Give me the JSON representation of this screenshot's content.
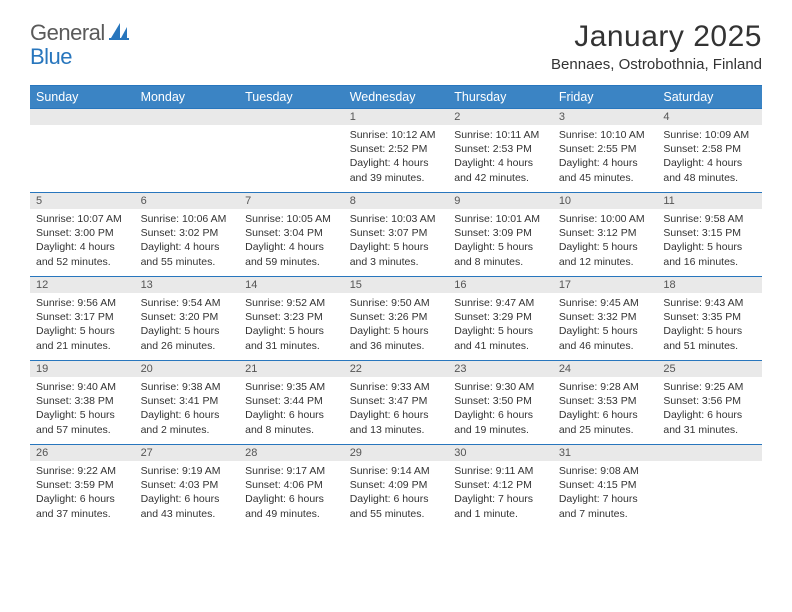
{
  "logo": {
    "word1": "General",
    "word2": "Blue"
  },
  "title": "January 2025",
  "location": "Bennaes, Ostrobothnia, Finland",
  "colors": {
    "header_bg": "#3b84c4",
    "header_border": "#2876bd",
    "daynum_bg": "#e9e9e9",
    "text": "#333333",
    "logo_gray": "#5a5a5a",
    "logo_blue": "#2876bd",
    "page_bg": "#ffffff"
  },
  "typography": {
    "title_size": 30,
    "location_size": 15,
    "dayhead_size": 12.5,
    "daynum_size": 11,
    "body_size": 10.5
  },
  "dayHeaders": [
    "Sunday",
    "Monday",
    "Tuesday",
    "Wednesday",
    "Thursday",
    "Friday",
    "Saturday"
  ],
  "weeks": [
    [
      {
        "empty": true
      },
      {
        "empty": true
      },
      {
        "empty": true
      },
      {
        "num": "1",
        "sunrise": "Sunrise: 10:12 AM",
        "sunset": "Sunset: 2:52 PM",
        "daylight1": "Daylight: 4 hours",
        "daylight2": "and 39 minutes."
      },
      {
        "num": "2",
        "sunrise": "Sunrise: 10:11 AM",
        "sunset": "Sunset: 2:53 PM",
        "daylight1": "Daylight: 4 hours",
        "daylight2": "and 42 minutes."
      },
      {
        "num": "3",
        "sunrise": "Sunrise: 10:10 AM",
        "sunset": "Sunset: 2:55 PM",
        "daylight1": "Daylight: 4 hours",
        "daylight2": "and 45 minutes."
      },
      {
        "num": "4",
        "sunrise": "Sunrise: 10:09 AM",
        "sunset": "Sunset: 2:58 PM",
        "daylight1": "Daylight: 4 hours",
        "daylight2": "and 48 minutes."
      }
    ],
    [
      {
        "num": "5",
        "sunrise": "Sunrise: 10:07 AM",
        "sunset": "Sunset: 3:00 PM",
        "daylight1": "Daylight: 4 hours",
        "daylight2": "and 52 minutes."
      },
      {
        "num": "6",
        "sunrise": "Sunrise: 10:06 AM",
        "sunset": "Sunset: 3:02 PM",
        "daylight1": "Daylight: 4 hours",
        "daylight2": "and 55 minutes."
      },
      {
        "num": "7",
        "sunrise": "Sunrise: 10:05 AM",
        "sunset": "Sunset: 3:04 PM",
        "daylight1": "Daylight: 4 hours",
        "daylight2": "and 59 minutes."
      },
      {
        "num": "8",
        "sunrise": "Sunrise: 10:03 AM",
        "sunset": "Sunset: 3:07 PM",
        "daylight1": "Daylight: 5 hours",
        "daylight2": "and 3 minutes."
      },
      {
        "num": "9",
        "sunrise": "Sunrise: 10:01 AM",
        "sunset": "Sunset: 3:09 PM",
        "daylight1": "Daylight: 5 hours",
        "daylight2": "and 8 minutes."
      },
      {
        "num": "10",
        "sunrise": "Sunrise: 10:00 AM",
        "sunset": "Sunset: 3:12 PM",
        "daylight1": "Daylight: 5 hours",
        "daylight2": "and 12 minutes."
      },
      {
        "num": "11",
        "sunrise": "Sunrise: 9:58 AM",
        "sunset": "Sunset: 3:15 PM",
        "daylight1": "Daylight: 5 hours",
        "daylight2": "and 16 minutes."
      }
    ],
    [
      {
        "num": "12",
        "sunrise": "Sunrise: 9:56 AM",
        "sunset": "Sunset: 3:17 PM",
        "daylight1": "Daylight: 5 hours",
        "daylight2": "and 21 minutes."
      },
      {
        "num": "13",
        "sunrise": "Sunrise: 9:54 AM",
        "sunset": "Sunset: 3:20 PM",
        "daylight1": "Daylight: 5 hours",
        "daylight2": "and 26 minutes."
      },
      {
        "num": "14",
        "sunrise": "Sunrise: 9:52 AM",
        "sunset": "Sunset: 3:23 PM",
        "daylight1": "Daylight: 5 hours",
        "daylight2": "and 31 minutes."
      },
      {
        "num": "15",
        "sunrise": "Sunrise: 9:50 AM",
        "sunset": "Sunset: 3:26 PM",
        "daylight1": "Daylight: 5 hours",
        "daylight2": "and 36 minutes."
      },
      {
        "num": "16",
        "sunrise": "Sunrise: 9:47 AM",
        "sunset": "Sunset: 3:29 PM",
        "daylight1": "Daylight: 5 hours",
        "daylight2": "and 41 minutes."
      },
      {
        "num": "17",
        "sunrise": "Sunrise: 9:45 AM",
        "sunset": "Sunset: 3:32 PM",
        "daylight1": "Daylight: 5 hours",
        "daylight2": "and 46 minutes."
      },
      {
        "num": "18",
        "sunrise": "Sunrise: 9:43 AM",
        "sunset": "Sunset: 3:35 PM",
        "daylight1": "Daylight: 5 hours",
        "daylight2": "and 51 minutes."
      }
    ],
    [
      {
        "num": "19",
        "sunrise": "Sunrise: 9:40 AM",
        "sunset": "Sunset: 3:38 PM",
        "daylight1": "Daylight: 5 hours",
        "daylight2": "and 57 minutes."
      },
      {
        "num": "20",
        "sunrise": "Sunrise: 9:38 AM",
        "sunset": "Sunset: 3:41 PM",
        "daylight1": "Daylight: 6 hours",
        "daylight2": "and 2 minutes."
      },
      {
        "num": "21",
        "sunrise": "Sunrise: 9:35 AM",
        "sunset": "Sunset: 3:44 PM",
        "daylight1": "Daylight: 6 hours",
        "daylight2": "and 8 minutes."
      },
      {
        "num": "22",
        "sunrise": "Sunrise: 9:33 AM",
        "sunset": "Sunset: 3:47 PM",
        "daylight1": "Daylight: 6 hours",
        "daylight2": "and 13 minutes."
      },
      {
        "num": "23",
        "sunrise": "Sunrise: 9:30 AM",
        "sunset": "Sunset: 3:50 PM",
        "daylight1": "Daylight: 6 hours",
        "daylight2": "and 19 minutes."
      },
      {
        "num": "24",
        "sunrise": "Sunrise: 9:28 AM",
        "sunset": "Sunset: 3:53 PM",
        "daylight1": "Daylight: 6 hours",
        "daylight2": "and 25 minutes."
      },
      {
        "num": "25",
        "sunrise": "Sunrise: 9:25 AM",
        "sunset": "Sunset: 3:56 PM",
        "daylight1": "Daylight: 6 hours",
        "daylight2": "and 31 minutes."
      }
    ],
    [
      {
        "num": "26",
        "sunrise": "Sunrise: 9:22 AM",
        "sunset": "Sunset: 3:59 PM",
        "daylight1": "Daylight: 6 hours",
        "daylight2": "and 37 minutes."
      },
      {
        "num": "27",
        "sunrise": "Sunrise: 9:19 AM",
        "sunset": "Sunset: 4:03 PM",
        "daylight1": "Daylight: 6 hours",
        "daylight2": "and 43 minutes."
      },
      {
        "num": "28",
        "sunrise": "Sunrise: 9:17 AM",
        "sunset": "Sunset: 4:06 PM",
        "daylight1": "Daylight: 6 hours",
        "daylight2": "and 49 minutes."
      },
      {
        "num": "29",
        "sunrise": "Sunrise: 9:14 AM",
        "sunset": "Sunset: 4:09 PM",
        "daylight1": "Daylight: 6 hours",
        "daylight2": "and 55 minutes."
      },
      {
        "num": "30",
        "sunrise": "Sunrise: 9:11 AM",
        "sunset": "Sunset: 4:12 PM",
        "daylight1": "Daylight: 7 hours",
        "daylight2": "and 1 minute."
      },
      {
        "num": "31",
        "sunrise": "Sunrise: 9:08 AM",
        "sunset": "Sunset: 4:15 PM",
        "daylight1": "Daylight: 7 hours",
        "daylight2": "and 7 minutes."
      },
      {
        "empty": true
      }
    ]
  ]
}
